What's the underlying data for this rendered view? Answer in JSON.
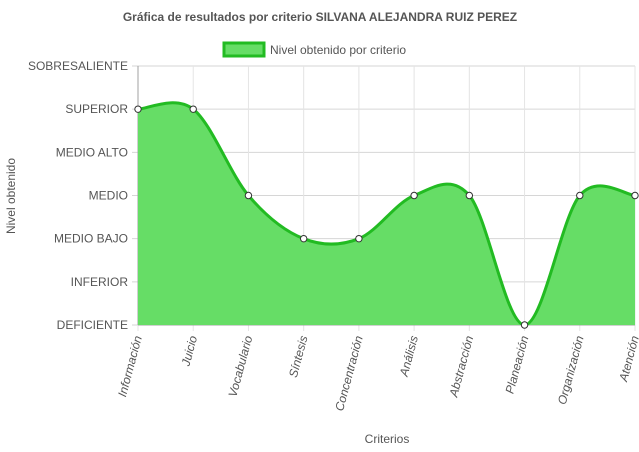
{
  "chart_data": {
    "type": "area",
    "title": "Gráfica de resultados por criterio SILVANA ALEJANDRA RUIZ PEREZ",
    "xlabel": "Criterios",
    "ylabel": "Nivel obtenido",
    "categories": [
      "Información",
      "Juicio",
      "Vocabulario",
      "Síntesis",
      "Concentración",
      "Análisis",
      "Abstracción",
      "Planeación",
      "Organización",
      "Atención"
    ],
    "y_levels": [
      "DEFICIENTE",
      "INFERIOR",
      "MEDIO BAJO",
      "MEDIO",
      "MEDIO ALTO",
      "SUPERIOR",
      "SOBRESALIENTE"
    ],
    "ylim": [
      0,
      6
    ],
    "series": [
      {
        "name": "Nivel obtenido por criterio",
        "values": [
          5,
          5,
          3,
          2,
          2,
          3,
          3,
          0,
          3,
          3
        ],
        "fill_color": "#66dd66",
        "line_color": "#22bb22"
      }
    ],
    "legend_position": "top",
    "grid": true
  }
}
